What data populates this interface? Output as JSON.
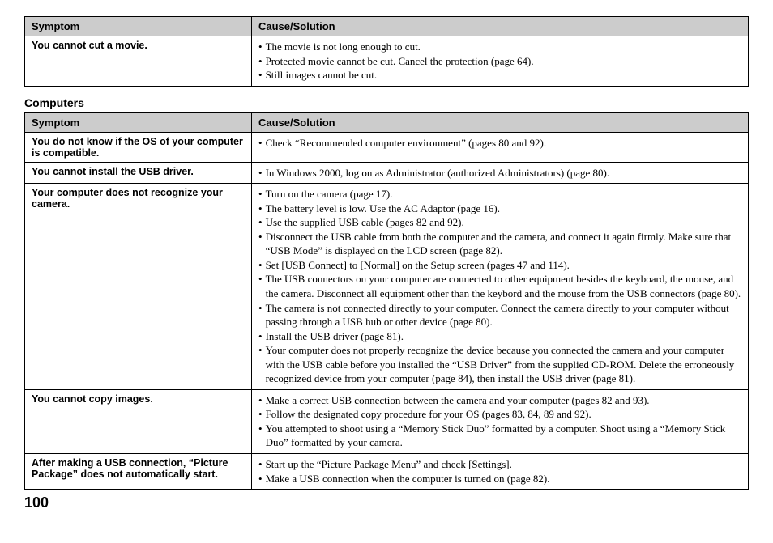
{
  "colors": {
    "header_bg": "#cccccc",
    "border": "#000000",
    "text": "#000000",
    "page_bg": "#ffffff"
  },
  "table1": {
    "headers": {
      "symptom": "Symptom",
      "solution": "Cause/Solution"
    },
    "rows": [
      {
        "symptom": "You cannot cut a movie.",
        "solutions": [
          "The movie is not long enough to cut.",
          "Protected movie cannot be cut. Cancel the protection (page 64).",
          "Still images cannot be cut."
        ]
      }
    ]
  },
  "section2_title": "Computers",
  "table2": {
    "headers": {
      "symptom": "Symptom",
      "solution": "Cause/Solution"
    },
    "rows": [
      {
        "symptom": "You do not know if the OS of your computer is compatible.",
        "solutions": [
          "Check “Recommended computer environment” (pages 80 and 92)."
        ]
      },
      {
        "symptom": "You cannot install the USB driver.",
        "solutions": [
          "In Windows 2000, log on as Administrator (authorized Administrators) (page 80)."
        ]
      },
      {
        "symptom": "Your computer does not recognize your camera.",
        "solutions": [
          "Turn on the camera (page 17).",
          "The battery level is low. Use the AC Adaptor (page 16).",
          "Use the supplied USB cable (pages 82 and 92).",
          "Disconnect the USB cable from both the computer and the camera, and connect it again firmly. Make sure that “USB Mode” is displayed on the LCD screen (page 82).",
          "Set [USB Connect] to [Normal] on the Setup screen (pages 47 and 114).",
          "The USB connectors on your computer are connected to other equipment besides the keyboard, the mouse, and the camera. Disconnect all equipment other than the keybord and the mouse from the USB connectors (page 80).",
          "The camera is not connected directly to your computer. Connect the camera directly to your computer without passing through a USB hub or other device (page 80).",
          "Install the USB driver (page 81).",
          "Your computer does not properly recognize the device because you connected the camera and your computer with the USB cable before you installed the “USB Driver” from the supplied CD-ROM. Delete the erroneously recognized device from your computer (page 84), then install the USB driver (page 81)."
        ]
      },
      {
        "symptom": "You cannot copy images.",
        "solutions": [
          "Make a correct USB connection between the camera and your computer (pages 82 and 93).",
          "Follow the designated copy procedure for your OS (pages 83, 84, 89 and 92).",
          "You attempted to shoot using a “Memory Stick Duo” formatted by a computer. Shoot using a “Memory Stick Duo” formatted by your camera."
        ]
      },
      {
        "symptom": "After making a USB connection, “Picture Package” does not automatically start.",
        "solutions": [
          "Start up the “Picture Package Menu” and check [Settings].",
          "Make a USB connection when the computer is turned on (page 82)."
        ]
      }
    ]
  },
  "page_number": "100"
}
